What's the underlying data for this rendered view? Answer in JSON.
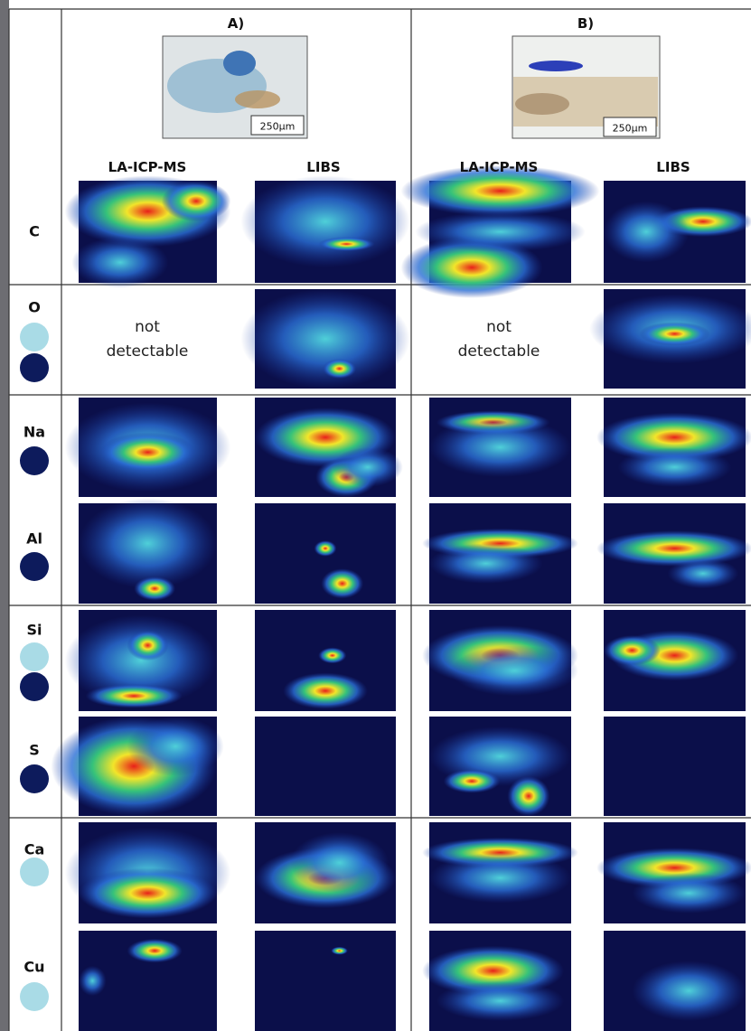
{
  "columns": [
    {
      "label": "A)",
      "scale_bar": "250µm",
      "methods": [
        "LA-ICP-MS",
        "LIBS"
      ],
      "not_detected": "not detectable"
    },
    {
      "label": "B)",
      "scale_bar": "250µm",
      "methods": [
        "LA-ICP-MS",
        "LIBS"
      ],
      "not_detected": "not detectable"
    }
  ],
  "elements": [
    "C",
    "O",
    "Na",
    "Al",
    "Si",
    "S",
    "Ca",
    "Cu"
  ]
}
